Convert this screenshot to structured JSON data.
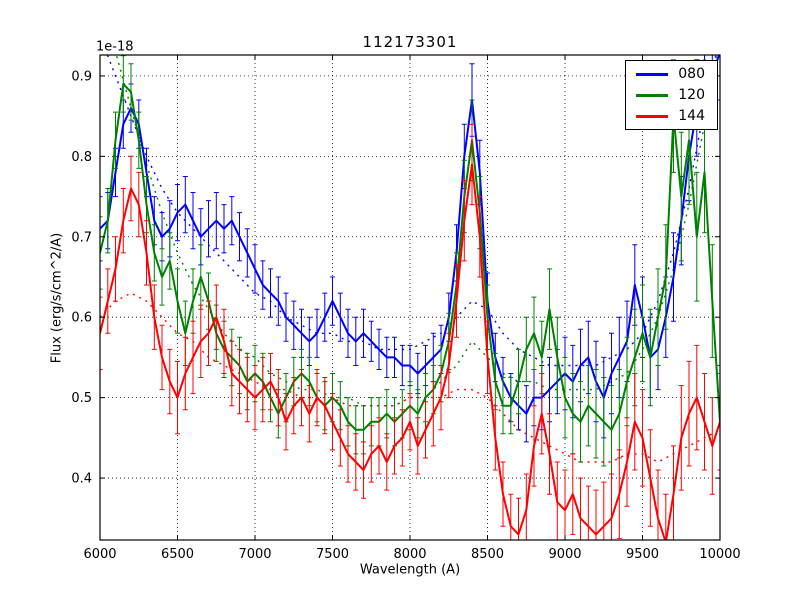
{
  "chart_data": {
    "type": "line",
    "title": "112173301",
    "xlabel": "Wavelength (A)",
    "ylabel": "Flux (erg/s/cm^2/A)",
    "offset_text": "1e-18",
    "xlim": [
      6000,
      10000
    ],
    "ylim": [
      0.323,
      0.926
    ],
    "xticks": [
      6000,
      6500,
      7000,
      7500,
      8000,
      8500,
      9000,
      9500,
      10000
    ],
    "yticks": [
      0.4,
      0.5,
      0.6,
      0.7,
      0.8,
      0.9
    ],
    "grid": true,
    "legend": {
      "position": "upper right",
      "entries": [
        {
          "label": "080",
          "color": "#0000ff"
        },
        {
          "label": "120",
          "color": "#008000"
        },
        {
          "label": "144",
          "color": "#ff0000"
        }
      ]
    },
    "x_start": 6000,
    "x_step": 50,
    "series": [
      {
        "name": "080-smooth",
        "color": "#0000ff",
        "style": "dotted",
        "x_step": 100,
        "values": [
          0.95,
          0.9,
          0.85,
          0.8,
          0.76,
          0.73,
          0.71,
          0.69,
          0.67,
          0.65,
          0.63,
          0.62,
          0.6,
          0.59,
          0.58,
          0.58,
          0.57,
          0.57,
          0.56,
          0.56,
          0.56,
          0.57,
          0.58,
          0.6,
          0.62,
          0.61,
          0.58,
          0.56,
          0.55,
          0.54,
          0.54,
          0.54,
          0.54,
          0.55,
          0.56,
          0.58,
          0.62,
          0.68,
          0.76,
          0.86,
          0.95
        ]
      },
      {
        "name": "120-smooth",
        "color": "#008000",
        "style": "dotted",
        "x_step": 100,
        "values": [
          1.0,
          0.93,
          0.86,
          0.79,
          0.73,
          0.68,
          0.64,
          0.61,
          0.58,
          0.56,
          0.55,
          0.53,
          0.52,
          0.51,
          0.51,
          0.5,
          0.5,
          0.49,
          0.49,
          0.49,
          0.5,
          0.5,
          0.52,
          0.54,
          0.57,
          0.55,
          0.53,
          0.52,
          0.52,
          0.51,
          0.51,
          0.51,
          0.51,
          0.52,
          0.53,
          0.56,
          0.6,
          0.66,
          0.74,
          0.84,
          0.95
        ]
      },
      {
        "name": "144-smooth",
        "color": "#ff0000",
        "style": "dotted",
        "x_step": 100,
        "values": [
          0.6,
          0.62,
          0.63,
          0.62,
          0.6,
          0.58,
          0.57,
          0.55,
          0.54,
          0.53,
          0.52,
          0.51,
          0.51,
          0.5,
          0.5,
          0.5,
          0.49,
          0.49,
          0.49,
          0.49,
          0.5,
          0.5,
          0.5,
          0.51,
          0.51,
          0.5,
          0.48,
          0.46,
          0.45,
          0.44,
          0.43,
          0.42,
          0.42,
          0.42,
          0.43,
          0.43,
          0.42,
          0.43,
          0.44,
          0.45,
          0.46
        ]
      },
      {
        "name": "080",
        "color": "#0000ff",
        "style": "solid",
        "values": [
          0.71,
          0.72,
          0.78,
          0.84,
          0.86,
          0.84,
          0.78,
          0.72,
          0.7,
          0.71,
          0.73,
          0.74,
          0.72,
          0.7,
          0.71,
          0.72,
          0.71,
          0.72,
          0.7,
          0.68,
          0.66,
          0.64,
          0.63,
          0.62,
          0.6,
          0.59,
          0.58,
          0.57,
          0.58,
          0.6,
          0.62,
          0.6,
          0.58,
          0.57,
          0.58,
          0.57,
          0.56,
          0.55,
          0.55,
          0.54,
          0.54,
          0.53,
          0.54,
          0.55,
          0.56,
          0.6,
          0.68,
          0.8,
          0.87,
          0.78,
          0.62,
          0.55,
          0.52,
          0.5,
          0.49,
          0.48,
          0.5,
          0.5,
          0.51,
          0.52,
          0.53,
          0.52,
          0.54,
          0.55,
          0.52,
          0.5,
          0.53,
          0.55,
          0.57,
          0.64,
          0.6,
          0.55,
          0.56,
          0.6,
          0.65,
          0.72,
          0.8,
          0.86,
          0.92,
          0.9,
          0.93
        ],
        "errors": [
          0.04,
          0.035,
          0.03,
          0.03,
          0.03,
          0.03,
          0.03,
          0.03,
          0.03,
          0.035,
          0.035,
          0.035,
          0.035,
          0.035,
          0.035,
          0.035,
          0.03,
          0.03,
          0.03,
          0.03,
          0.03,
          0.03,
          0.03,
          0.03,
          0.03,
          0.03,
          0.03,
          0.03,
          0.03,
          0.03,
          0.03,
          0.03,
          0.03,
          0.03,
          0.03,
          0.025,
          0.025,
          0.025,
          0.025,
          0.025,
          0.025,
          0.025,
          0.025,
          0.03,
          0.03,
          0.03,
          0.035,
          0.04,
          0.045,
          0.04,
          0.035,
          0.03,
          0.03,
          0.03,
          0.03,
          0.035,
          0.035,
          0.04,
          0.04,
          0.04,
          0.045,
          0.045,
          0.045,
          0.045,
          0.05,
          0.05,
          0.05,
          0.05,
          0.05,
          0.05,
          0.05,
          0.05,
          0.05,
          0.05,
          0.055,
          0.055,
          0.055,
          0.06,
          0.06,
          0.06,
          0.06
        ]
      },
      {
        "name": "120",
        "color": "#008000",
        "style": "solid",
        "values": [
          0.68,
          0.72,
          0.82,
          0.89,
          0.88,
          0.82,
          0.74,
          0.68,
          0.65,
          0.67,
          0.62,
          0.58,
          0.62,
          0.65,
          0.62,
          0.58,
          0.56,
          0.55,
          0.54,
          0.52,
          0.53,
          0.52,
          0.5,
          0.48,
          0.5,
          0.52,
          0.53,
          0.52,
          0.5,
          0.49,
          0.5,
          0.49,
          0.47,
          0.46,
          0.46,
          0.47,
          0.47,
          0.48,
          0.47,
          0.48,
          0.49,
          0.48,
          0.5,
          0.51,
          0.53,
          0.57,
          0.64,
          0.75,
          0.82,
          0.73,
          0.6,
          0.52,
          0.49,
          0.49,
          0.52,
          0.56,
          0.58,
          0.55,
          0.61,
          0.55,
          0.5,
          0.48,
          0.47,
          0.49,
          0.48,
          0.47,
          0.46,
          0.48,
          0.52,
          0.55,
          0.58,
          0.55,
          0.6,
          0.65,
          0.85,
          0.75,
          0.82,
          0.7,
          0.78,
          0.62,
          0.47
        ],
        "errors": [
          0.045,
          0.04,
          0.035,
          0.035,
          0.035,
          0.035,
          0.035,
          0.035,
          0.035,
          0.035,
          0.04,
          0.04,
          0.04,
          0.04,
          0.035,
          0.035,
          0.035,
          0.035,
          0.035,
          0.035,
          0.035,
          0.035,
          0.03,
          0.03,
          0.03,
          0.03,
          0.03,
          0.03,
          0.03,
          0.03,
          0.03,
          0.03,
          0.03,
          0.03,
          0.03,
          0.03,
          0.03,
          0.03,
          0.03,
          0.03,
          0.03,
          0.03,
          0.03,
          0.03,
          0.035,
          0.035,
          0.04,
          0.045,
          0.05,
          0.045,
          0.04,
          0.035,
          0.035,
          0.035,
          0.04,
          0.04,
          0.045,
          0.045,
          0.05,
          0.05,
          0.05,
          0.05,
          0.05,
          0.05,
          0.055,
          0.055,
          0.055,
          0.055,
          0.055,
          0.06,
          0.06,
          0.06,
          0.06,
          0.065,
          0.07,
          0.08,
          0.08,
          0.08,
          0.075,
          0.07,
          0.07
        ]
      },
      {
        "name": "144",
        "color": "#ff0000",
        "style": "solid",
        "values": [
          0.58,
          0.62,
          0.66,
          0.72,
          0.76,
          0.74,
          0.68,
          0.6,
          0.55,
          0.52,
          0.5,
          0.53,
          0.55,
          0.57,
          0.58,
          0.6,
          0.57,
          0.53,
          0.52,
          0.51,
          0.5,
          0.51,
          0.52,
          0.5,
          0.47,
          0.49,
          0.5,
          0.48,
          0.5,
          0.49,
          0.47,
          0.45,
          0.43,
          0.42,
          0.41,
          0.43,
          0.44,
          0.42,
          0.44,
          0.45,
          0.47,
          0.44,
          0.46,
          0.48,
          0.5,
          0.54,
          0.62,
          0.72,
          0.79,
          0.7,
          0.55,
          0.45,
          0.38,
          0.34,
          0.33,
          0.36,
          0.44,
          0.48,
          0.43,
          0.37,
          0.36,
          0.38,
          0.35,
          0.34,
          0.33,
          0.34,
          0.35,
          0.38,
          0.42,
          0.47,
          0.45,
          0.4,
          0.35,
          0.32,
          0.38,
          0.45,
          0.48,
          0.5,
          0.47,
          0.44,
          0.47
        ],
        "errors": [
          0.045,
          0.04,
          0.04,
          0.04,
          0.04,
          0.04,
          0.04,
          0.04,
          0.04,
          0.04,
          0.045,
          0.045,
          0.045,
          0.045,
          0.04,
          0.04,
          0.04,
          0.04,
          0.04,
          0.04,
          0.04,
          0.04,
          0.035,
          0.035,
          0.035,
          0.035,
          0.035,
          0.035,
          0.035,
          0.035,
          0.035,
          0.035,
          0.035,
          0.035,
          0.035,
          0.035,
          0.035,
          0.035,
          0.035,
          0.035,
          0.035,
          0.035,
          0.035,
          0.04,
          0.04,
          0.04,
          0.045,
          0.05,
          0.05,
          0.05,
          0.045,
          0.04,
          0.04,
          0.04,
          0.045,
          0.045,
          0.05,
          0.05,
          0.05,
          0.05,
          0.05,
          0.05,
          0.05,
          0.05,
          0.055,
          0.055,
          0.055,
          0.055,
          0.055,
          0.06,
          0.06,
          0.06,
          0.06,
          0.06,
          0.06,
          0.065,
          0.065,
          0.065,
          0.06,
          0.06,
          0.06
        ]
      }
    ]
  }
}
